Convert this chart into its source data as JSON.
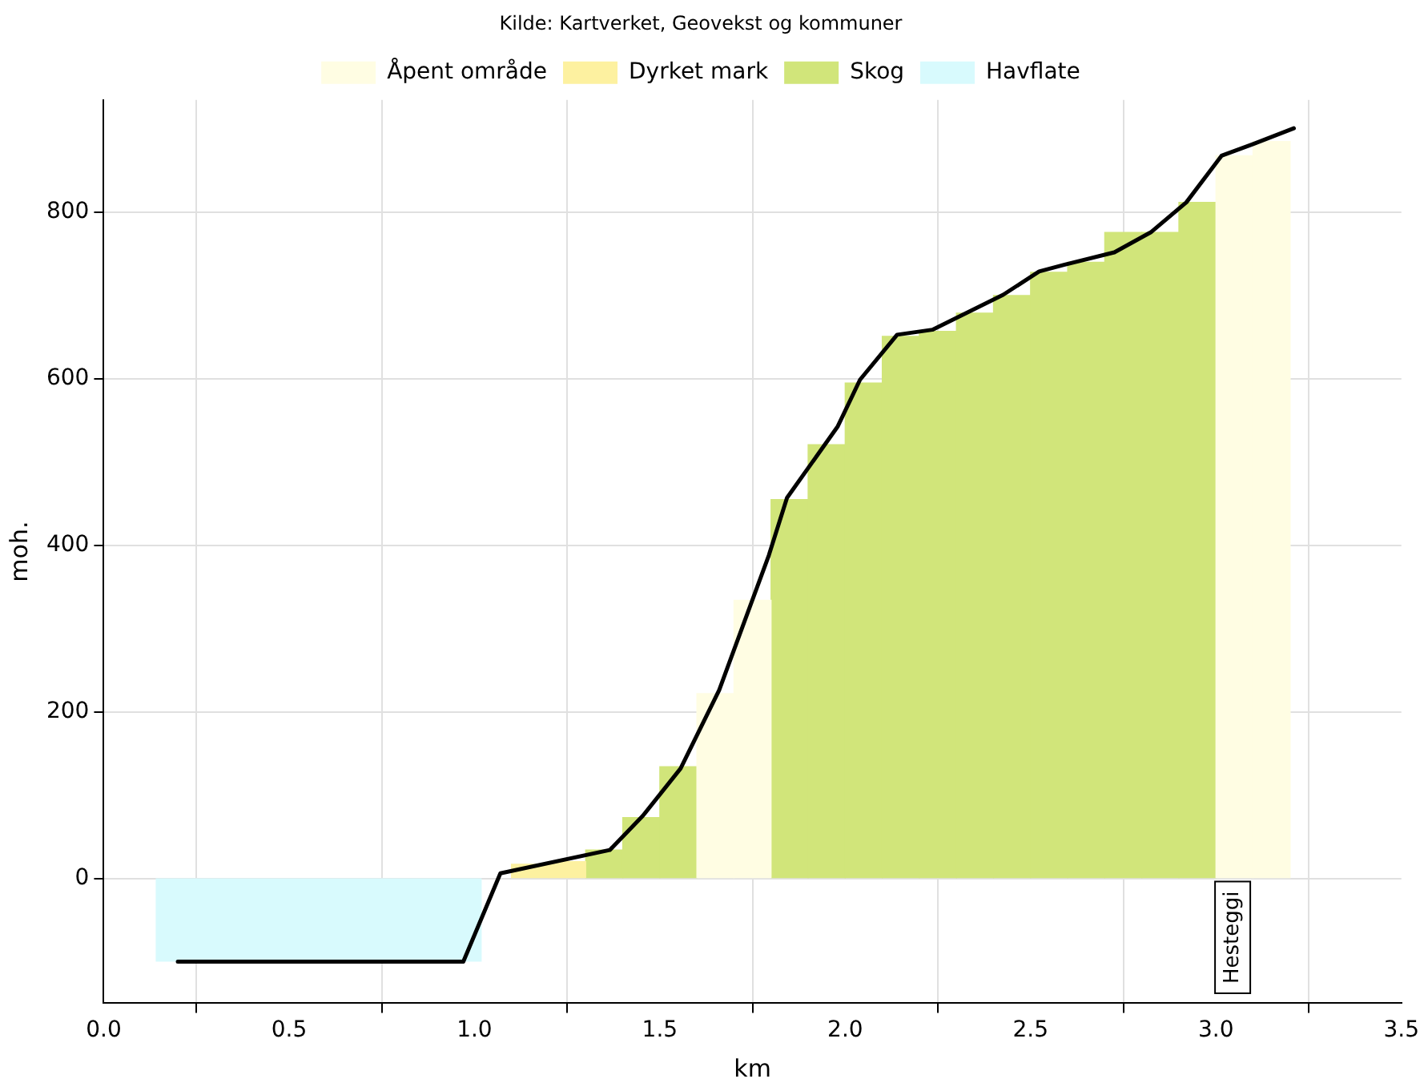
{
  "chart_data": {
    "type": "bar",
    "title": "Kilde: Kartverket, Geovekst og kommuner",
    "xlabel": "km",
    "ylabel": "moh.",
    "xlim": [
      0,
      3.5
    ],
    "xticks": [
      {
        "value": 0,
        "label": "0.0"
      },
      {
        "value": 0.5,
        "label": "0.5"
      },
      {
        "value": 1,
        "label": "1.0"
      },
      {
        "value": 1.5,
        "label": "1.5"
      },
      {
        "value": 2,
        "label": "2.0"
      },
      {
        "value": 2.5,
        "label": "2.5"
      },
      {
        "value": 3,
        "label": "3.0"
      },
      {
        "value": 3.5,
        "label": "3.5"
      }
    ],
    "ylim": [
      -150,
      935
    ],
    "yticks": [
      0,
      200,
      400,
      600,
      800
    ],
    "grid": true,
    "legend": "top",
    "series": [
      {
        "type": "line",
        "color": "#000000",
        "marker": "none",
        "x": [
          0.2,
          0.97,
          1.07,
          1.365,
          1.454,
          1.556,
          1.66,
          1.794,
          1.843,
          1.98,
          2.04,
          2.14,
          2.235,
          2.426,
          2.523,
          2.59,
          2.726,
          2.824,
          2.92,
          3.015,
          3.1,
          3.21
        ],
        "values": [
          -100,
          -100,
          6,
          34,
          75,
          132,
          226,
          388,
          457,
          543,
          599,
          653,
          659,
          701,
          729,
          737,
          752,
          776,
          812,
          868,
          882,
          901
        ]
      },
      {
        "name": "Havflate",
        "type": "area",
        "color": "#d8fafd",
        "x": [
          0.14,
          1.02
        ],
        "values": [
          -100,
          -100
        ]
      },
      {
        "name": "Åpent område",
        "color": "#fffde3",
        "x": [
          1.65,
          1.75,
          3.05,
          3.15
        ],
        "values": [
          222,
          334,
          868,
          885
        ]
      },
      {
        "name": "Dyrket mark",
        "color": "#fdf1a0",
        "x": [
          1.15,
          1.25
        ],
        "values": [
          17,
          20
        ]
      },
      {
        "name": "Skog",
        "color": "#d1e57a",
        "x": [
          1.35,
          1.45,
          1.55,
          1.85,
          1.95,
          2.05,
          2.15,
          2.25,
          2.35,
          2.45,
          2.55,
          2.65,
          2.75,
          2.85,
          2.95
        ],
        "values": [
          34,
          73,
          134,
          455,
          521,
          595,
          651,
          657,
          679,
          700,
          728,
          740,
          776,
          776,
          812
        ]
      }
    ],
    "annotations": [
      "Hesteggi"
    ]
  }
}
